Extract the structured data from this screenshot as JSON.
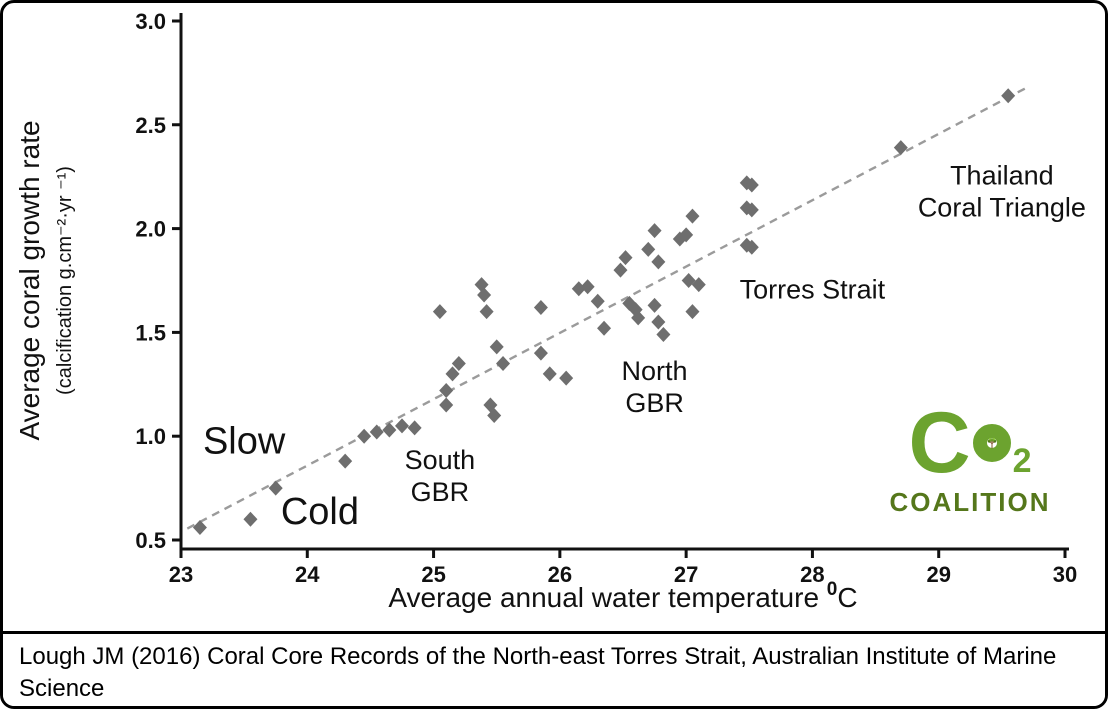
{
  "figure_caption": "Lough JM (2016) Coral Core Records of the North-east Torres Strait, Australian Institute of Marine Science",
  "logo": {
    "c": "C",
    "o": "O",
    "subscript": "2",
    "coalition": "COALITION",
    "green": "#6ca32f",
    "dark_green": "#55771b",
    "trunk_brown": "#7a4a21"
  },
  "chart_data": {
    "type": "scatter",
    "title": "",
    "xlabel": "Average annual water temperature",
    "xlabel_unit_sup": "0",
    "xlabel_unit": "C",
    "ylabel": "Average coral growth rate",
    "ylabel_sub": "(calcification g.cm⁻²·yr ⁻¹)",
    "xlim": [
      23,
      30
    ],
    "ylim": [
      0.5,
      3.0
    ],
    "xticks": [
      23,
      24,
      25,
      26,
      27,
      28,
      29,
      30
    ],
    "xtick_labels": [
      "23",
      "24",
      "25",
      "26",
      "27",
      "28",
      "29",
      "30"
    ],
    "yticks": [
      0.5,
      1.0,
      1.5,
      2.0,
      2.5,
      3.0
    ],
    "ytick_labels": [
      "0.5",
      "1.0",
      "1.5",
      "2.0",
      "2.5",
      "3.0"
    ],
    "grid": false,
    "legend": false,
    "marker": "diamond",
    "marker_color": "#6e6e6e",
    "axis_color": "#111111",
    "trendline": {
      "style": "dashed",
      "color": "#9b9b9b",
      "x1": 23.05,
      "y1": 0.555,
      "x2": 29.7,
      "y2": 2.68
    },
    "points": [
      [
        23.15,
        0.56
      ],
      [
        23.55,
        0.6
      ],
      [
        23.75,
        0.75
      ],
      [
        24.3,
        0.88
      ],
      [
        24.45,
        1.0
      ],
      [
        24.55,
        1.02
      ],
      [
        24.65,
        1.03
      ],
      [
        24.75,
        1.05
      ],
      [
        24.85,
        1.04
      ],
      [
        25.05,
        1.6
      ],
      [
        25.1,
        1.22
      ],
      [
        25.1,
        1.15
      ],
      [
        25.15,
        1.3
      ],
      [
        25.2,
        1.35
      ],
      [
        25.38,
        1.73
      ],
      [
        25.4,
        1.68
      ],
      [
        25.42,
        1.6
      ],
      [
        25.45,
        1.15
      ],
      [
        25.48,
        1.1
      ],
      [
        25.5,
        1.43
      ],
      [
        25.55,
        1.35
      ],
      [
        25.85,
        1.62
      ],
      [
        25.85,
        1.4
      ],
      [
        25.92,
        1.3
      ],
      [
        26.05,
        1.28
      ],
      [
        26.15,
        1.71
      ],
      [
        26.22,
        1.72
      ],
      [
        26.3,
        1.65
      ],
      [
        26.35,
        1.52
      ],
      [
        26.48,
        1.8
      ],
      [
        26.52,
        1.86
      ],
      [
        26.55,
        1.64
      ],
      [
        26.6,
        1.61
      ],
      [
        26.62,
        1.57
      ],
      [
        26.7,
        1.9
      ],
      [
        26.75,
        1.99
      ],
      [
        26.78,
        1.84
      ],
      [
        26.75,
        1.63
      ],
      [
        26.78,
        1.55
      ],
      [
        26.82,
        1.49
      ],
      [
        26.95,
        1.95
      ],
      [
        27.0,
        1.97
      ],
      [
        27.02,
        1.75
      ],
      [
        27.05,
        2.06
      ],
      [
        27.05,
        1.6
      ],
      [
        27.1,
        1.73
      ],
      [
        27.48,
        2.22
      ],
      [
        27.52,
        2.21
      ],
      [
        27.48,
        2.1
      ],
      [
        27.52,
        2.09
      ],
      [
        27.48,
        1.92
      ],
      [
        27.52,
        1.91
      ],
      [
        28.7,
        2.39
      ],
      [
        29.55,
        2.64
      ]
    ],
    "annotations": [
      {
        "lines": [
          "Slow"
        ],
        "x": 23.5,
        "y": 0.98,
        "font_size": 38
      },
      {
        "lines": [
          "Cold"
        ],
        "x": 24.1,
        "y": 0.64,
        "font_size": 38
      },
      {
        "lines": [
          "South",
          "GBR"
        ],
        "x": 25.05,
        "y": 0.81,
        "font_size": 27
      },
      {
        "lines": [
          "North",
          "GBR"
        ],
        "x": 26.75,
        "y": 1.24,
        "font_size": 27
      },
      {
        "lines": [
          "Torres Strait"
        ],
        "x": 28.0,
        "y": 1.71,
        "font_size": 27
      },
      {
        "lines": [
          "Thailand",
          "Coral Triangle"
        ],
        "x": 29.5,
        "y": 2.18,
        "font_size": 27
      }
    ]
  }
}
